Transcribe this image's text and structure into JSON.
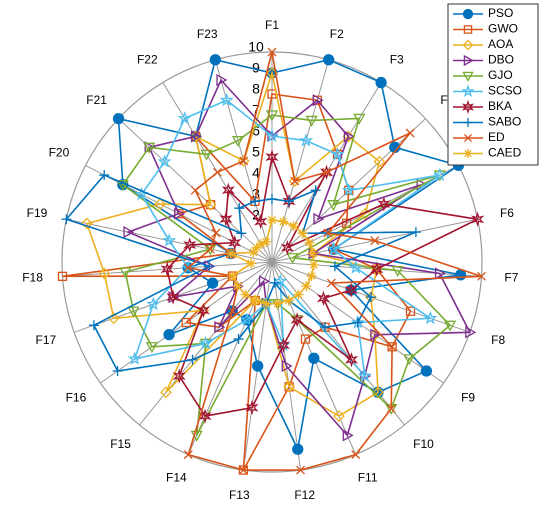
{
  "chart_data": {
    "type": "radar",
    "categories": [
      "F1",
      "F2",
      "F3",
      "F4",
      "F5",
      "F6",
      "F7",
      "F8",
      "F9",
      "F10",
      "F11",
      "F12",
      "F13",
      "F14",
      "F15",
      "F16",
      "F17",
      "F18",
      "F19",
      "F20",
      "F21",
      "F22",
      "F23"
    ],
    "rlim": [
      0,
      10
    ],
    "rticks": [
      2,
      3,
      4,
      5,
      6,
      7,
      8,
      9,
      10
    ],
    "legend": "upper right",
    "series": [
      {
        "name": "PSO",
        "color": "#0072BD",
        "marker": "circle",
        "values": [
          9,
          10,
          10,
          8,
          10,
          3,
          9,
          4,
          9,
          8,
          5,
          9,
          5,
          3,
          3,
          6,
          3,
          4,
          2,
          8,
          10,
          7,
          10
        ]
      },
      {
        "name": "GWO",
        "color": "#D95319",
        "marker": "square",
        "values": [
          8,
          8,
          6,
          5,
          4,
          3,
          5,
          7,
          7,
          4,
          4,
          6,
          10,
          2,
          4,
          5,
          2,
          10,
          2,
          5,
          4,
          7,
          3
        ]
      },
      {
        "name": "AOA",
        "color": "#EDB120",
        "marker": "diamond",
        "values": [
          9,
          4,
          7,
          7,
          5,
          2,
          5,
          5,
          6,
          8,
          8,
          6,
          2,
          2,
          8,
          4,
          8,
          8,
          9,
          6,
          4,
          7,
          5
        ]
      },
      {
        "name": "DBO",
        "color": "#7E2F8E",
        "marker": "triangle-right",
        "values": [
          6,
          8,
          7,
          3,
          8,
          2,
          8,
          10,
          6,
          7,
          9,
          5,
          2,
          1,
          4,
          2,
          5,
          3,
          7,
          5,
          8,
          7,
          9
        ]
      },
      {
        "name": "GJO",
        "color": "#77AC30",
        "marker": "triangle-down",
        "values": [
          7,
          7,
          8,
          4,
          9,
          1,
          6,
          9,
          8,
          9,
          3,
          2,
          2,
          9,
          5,
          7,
          7,
          7,
          3,
          8,
          8,
          6,
          6
        ]
      },
      {
        "name": "SCSO",
        "color": "#4DBEEE",
        "marker": "pentagram",
        "values": [
          6,
          6,
          6,
          5,
          9,
          3,
          4,
          8,
          5,
          7,
          1,
          4,
          2,
          3,
          5,
          8,
          6,
          4,
          5,
          7,
          7,
          8,
          8
        ]
      },
      {
        "name": "BKA",
        "color": "#A2142F",
        "marker": "hexagram",
        "values": [
          5,
          3,
          5,
          1,
          6,
          10,
          5,
          4,
          3,
          6,
          3,
          4,
          7,
          8,
          7,
          4,
          5,
          5,
          4,
          2,
          3,
          4,
          2
        ]
      },
      {
        "name": "SABO",
        "color": "#0072BD",
        "marker": "plus",
        "values": [
          3,
          3,
          4,
          2,
          3,
          7,
          3,
          5,
          5,
          4,
          2,
          1,
          2,
          4,
          6,
          9,
          9,
          3,
          10,
          9,
          2,
          3,
          3
        ]
      },
      {
        "name": "ED",
        "color": "#D95319",
        "marker": "x",
        "values": [
          10,
          4,
          5,
          9,
          3,
          5,
          10,
          3,
          7,
          9,
          10,
          10,
          10,
          10,
          3,
          2,
          2,
          4,
          3,
          3,
          5,
          5,
          5
        ]
      },
      {
        "name": "CAED",
        "color": "#EDB120",
        "marker": "asterisk",
        "values": [
          2,
          2,
          2,
          2,
          2,
          2,
          2,
          2,
          2,
          2,
          2,
          2,
          2,
          2,
          2,
          2,
          2,
          1,
          2,
          1,
          1,
          1,
          1
        ]
      }
    ]
  }
}
